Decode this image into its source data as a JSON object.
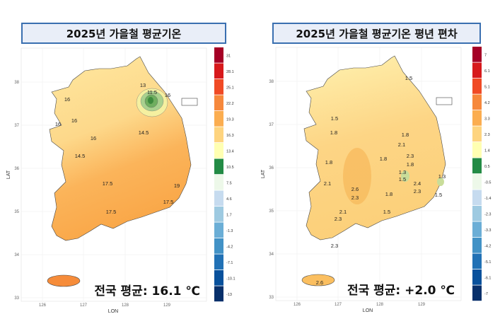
{
  "panels": [
    {
      "title": "2025년 가을철 평균기온",
      "average_text": "전국 평균: 16.1 ℃",
      "legend": [
        "31",
        "28.1",
        "25.1",
        "22.2",
        "19.3",
        "16.3",
        "13.4",
        "10.5",
        "7.5",
        "4.6",
        "1.7",
        "-1.3",
        "-4.2",
        "-7.1",
        "-10.1",
        "-13"
      ],
      "contour_labels": [
        "13",
        "11.5",
        "16",
        "16",
        "16",
        "16",
        "16",
        "14.5",
        "14.5",
        "17.5",
        "19",
        "17.5",
        "17.5"
      ]
    },
    {
      "title": "2025년 가을철 평균기온  평년 편차",
      "average_text": "전국 평균: +2.0 ℃",
      "legend": [
        "7",
        "6.1",
        "5.1",
        "4.2",
        "3.3",
        "2.3",
        "1.4",
        "0.5",
        "-0.5",
        "-1.4",
        "-2.3",
        "-3.3",
        "-4.2",
        "-5.1",
        "-6.1",
        "-7"
      ],
      "contour_labels": [
        "1.5",
        "1.5",
        "1.8",
        "1.8",
        "2.1",
        "2.3",
        "1.8",
        "1.8",
        "1.8",
        "1.3",
        "1.5",
        "1.3",
        "2.1",
        "2.6",
        "2.4",
        "2.3",
        "2.3",
        "1.8",
        "1.5",
        "2.1",
        "2.3",
        "1.5",
        "2.3",
        "2.6"
      ]
    }
  ],
  "axes": {
    "xlabel": "LON",
    "ylabel": "LAT",
    "x_ticks": [
      "126",
      "127",
      "128",
      "129"
    ],
    "y_ticks": [
      "38",
      "37",
      "36",
      "35",
      "34",
      "33"
    ]
  },
  "legend_colors": [
    "#a50026",
    "#d7191c",
    "#f04a25",
    "#f6883c",
    "#fbad50",
    "#fed47f",
    "#ffffb2",
    "#238b45",
    "#edf8e9",
    "#c6dbef",
    "#9ecae1",
    "#6baed6",
    "#4292c6",
    "#2171b5",
    "#08519c",
    "#08306b"
  ]
}
